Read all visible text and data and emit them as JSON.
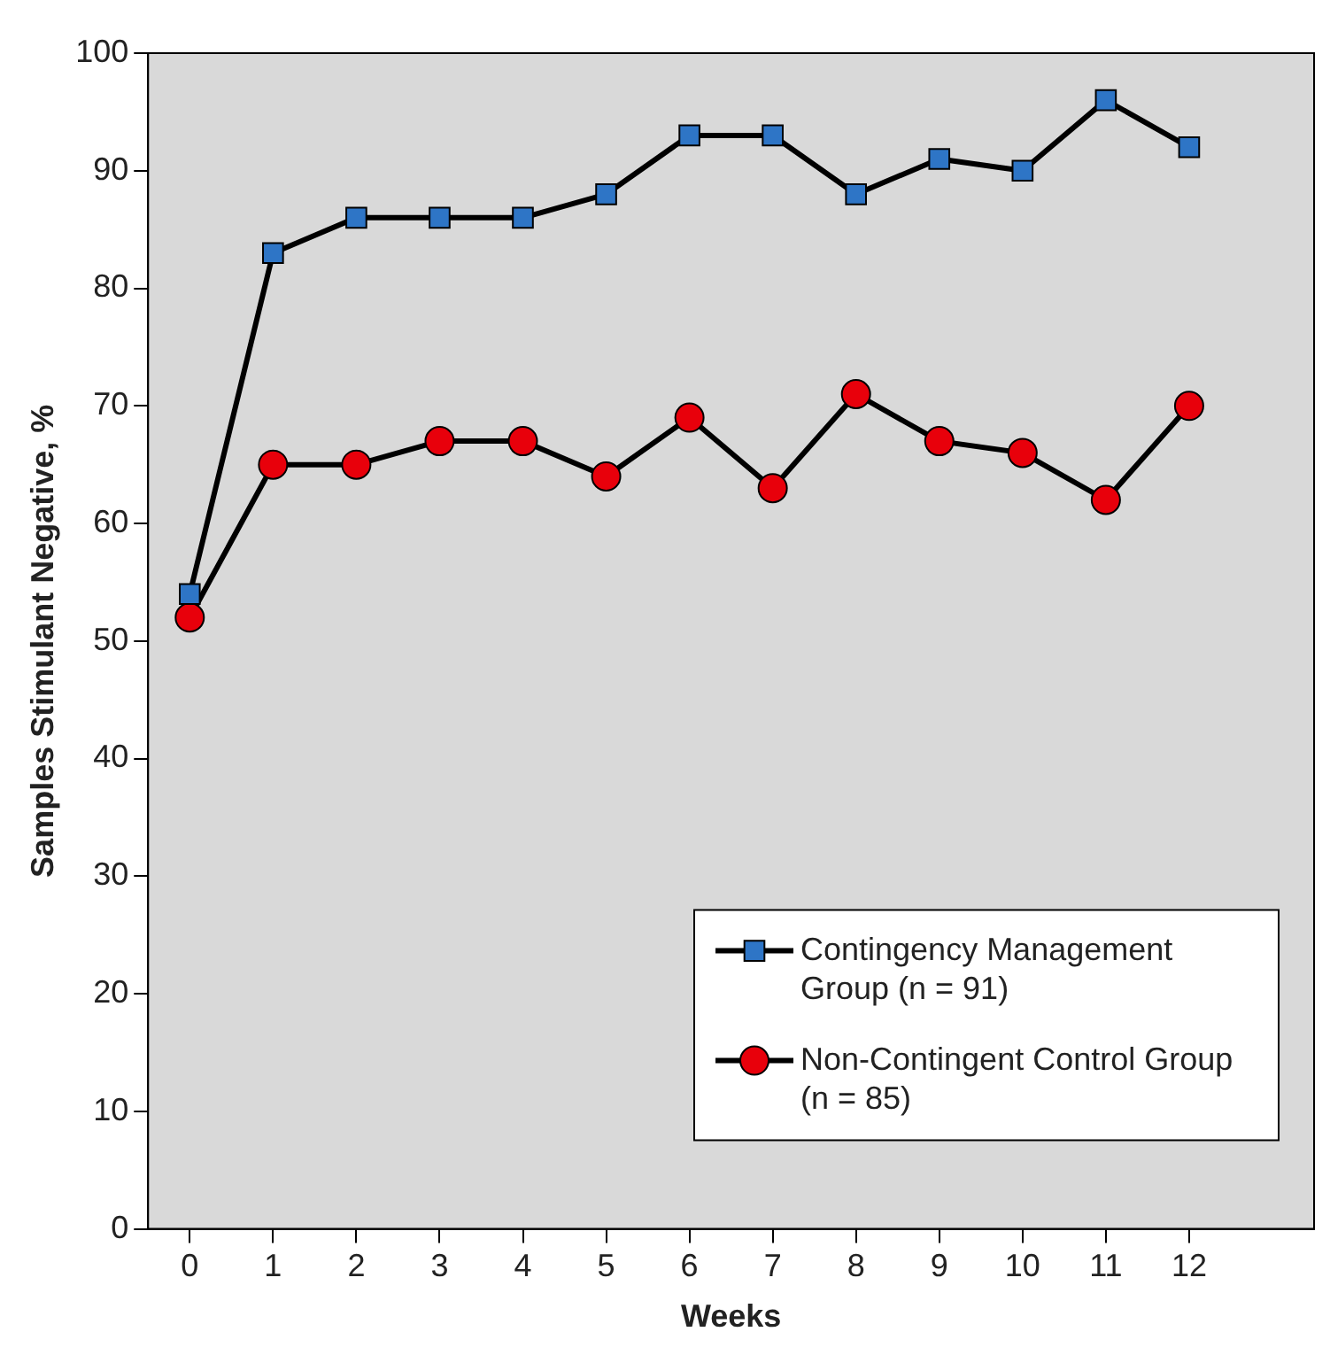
{
  "chart_data": {
    "type": "line",
    "xlabel": "Weeks",
    "ylabel": "Samples Stimulant Negative, %",
    "x": [
      0,
      1,
      2,
      3,
      4,
      5,
      6,
      7,
      8,
      9,
      10,
      11,
      12
    ],
    "series": [
      {
        "name": "Contingency Management Group (n = 91)",
        "color": "#2e75c6",
        "marker": "square",
        "values": [
          54,
          83,
          86,
          86,
          86,
          88,
          93,
          93,
          88,
          91,
          90,
          96,
          92
        ]
      },
      {
        "name": "Non-Contingent Control Group (n = 85)",
        "color": "#e8000b",
        "marker": "circle",
        "values": [
          52,
          65,
          65,
          67,
          67,
          64,
          69,
          63,
          71,
          67,
          66,
          62,
          70
        ]
      }
    ],
    "xlim": [
      -0.5,
      13.5
    ],
    "xticks": [
      0,
      1,
      2,
      3,
      4,
      5,
      6,
      7,
      8,
      9,
      10,
      11,
      12
    ],
    "ylim": [
      0,
      100
    ],
    "yticks": [
      0,
      10,
      20,
      30,
      40,
      50,
      60,
      70,
      80,
      90,
      100
    ],
    "grid": false,
    "legend": "bottom right",
    "line_style": "solid"
  }
}
